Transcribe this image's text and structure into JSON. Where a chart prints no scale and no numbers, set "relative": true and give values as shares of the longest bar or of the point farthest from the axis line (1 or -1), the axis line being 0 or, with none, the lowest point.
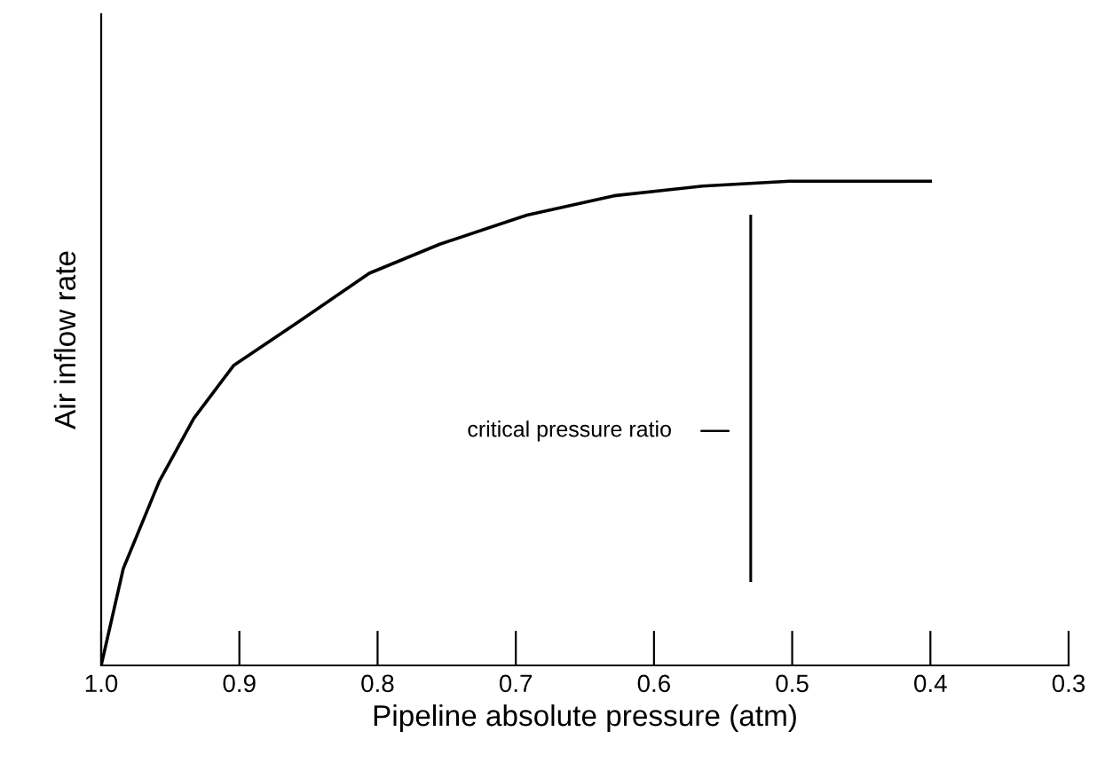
{
  "chart_data": {
    "type": "line",
    "xlabel": "Pipeline absolute pressure (atm)",
    "ylabel": "Air inflow rate",
    "relative": true,
    "x": [
      1.0,
      0.984,
      0.958,
      0.933,
      0.904,
      0.857,
      0.806,
      0.755,
      0.692,
      0.629,
      0.565,
      0.502,
      0.4
    ],
    "series": [
      {
        "color": "#000000",
        "values": [
          0,
          0.2,
          0.38,
          0.51,
          0.62,
          0.71,
          0.81,
          0.87,
          0.93,
          0.97,
          0.99,
          1,
          1
        ]
      }
    ],
    "xlim": [
      1.0,
      0.3
    ],
    "xticks": [
      {
        "value": 1,
        "label": "1.0"
      },
      0.9,
      0.8,
      0.7,
      0.6,
      0.5,
      0.4,
      0.3
    ],
    "ref_lines": [
      {
        "axis": "x",
        "value": 0.53,
        "label": "critical pressure ratio",
        "color": "#000000"
      }
    ],
    "grid": false,
    "legend": false,
    "marker": "none",
    "line_style": "solid"
  }
}
